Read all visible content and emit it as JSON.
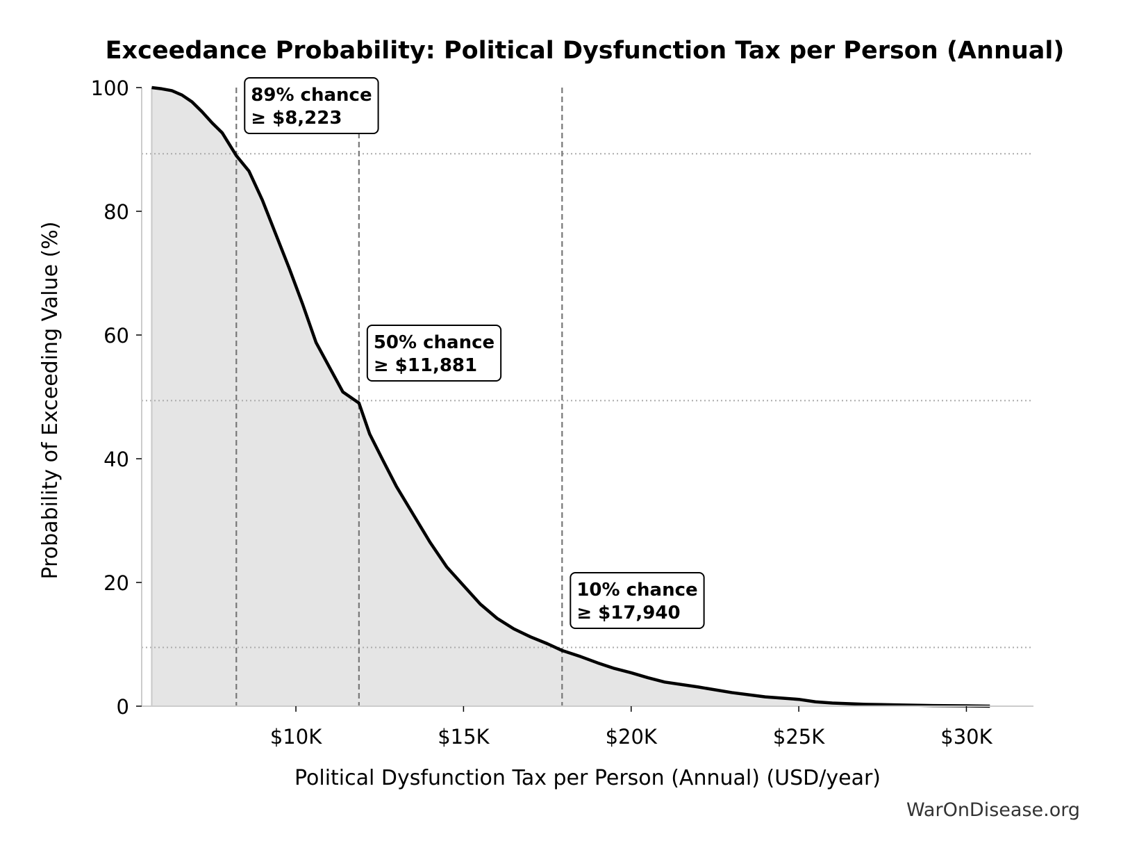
{
  "chart_data": {
    "type": "area",
    "title": "Exceedance Probability: Political Dysfunction Tax per Person (Annual)",
    "xlabel": "Political Dysfunction Tax per Person (Annual) (USD/year)",
    "ylabel": "Probability of Exceeding Value (%)",
    "xlim": [
      5400,
      32000
    ],
    "ylim": [
      0,
      100
    ],
    "x_ticks": [
      {
        "value": 10000,
        "label": "$10K"
      },
      {
        "value": 15000,
        "label": "$15K"
      },
      {
        "value": 20000,
        "label": "$20K"
      },
      {
        "value": 25000,
        "label": "$25K"
      },
      {
        "value": 30000,
        "label": "$30K"
      }
    ],
    "y_ticks": [
      {
        "value": 0,
        "label": "0"
      },
      {
        "value": 20,
        "label": "20"
      },
      {
        "value": 40,
        "label": "40"
      },
      {
        "value": 60,
        "label": "60"
      },
      {
        "value": 80,
        "label": "80"
      },
      {
        "value": 100,
        "label": "100"
      }
    ],
    "grid": false,
    "series": [
      {
        "x": [
          5700,
          6000,
          6300,
          6600,
          6900,
          7200,
          7500,
          7800,
          8223,
          8600,
          9000,
          9400,
          9800,
          10200,
          10600,
          11000,
          11400,
          11881,
          12200,
          12600,
          13000,
          13500,
          14000,
          14500,
          15000,
          15500,
          16000,
          16500,
          17000,
          17500,
          17940,
          18500,
          19000,
          19500,
          20000,
          20500,
          21000,
          22000,
          23000,
          24000,
          25000,
          25500,
          26000,
          27000,
          28000,
          29000,
          30000,
          30700
        ],
        "y": [
          100,
          99.8,
          99.5,
          98.8,
          97.7,
          96.1,
          94.3,
          92.7,
          89,
          86.5,
          81.8,
          76.3,
          70.8,
          65,
          58.8,
          54.8,
          50.8,
          49,
          44,
          39.7,
          35.5,
          31,
          26.5,
          22.5,
          19.5,
          16.5,
          14.2,
          12.5,
          11.2,
          10.1,
          9,
          8,
          7,
          6.1,
          5.4,
          4.6,
          3.9,
          3.1,
          2.2,
          1.5,
          1.1,
          0.7,
          0.5,
          0.3,
          0.2,
          0.1,
          0.05,
          0
        ]
      }
    ],
    "reference_lines": [
      {
        "x": 8223,
        "y": 89.3
      },
      {
        "x": 11881,
        "y": 49.4
      },
      {
        "x": 17940,
        "y": 9.5
      }
    ],
    "annotations": [
      {
        "line1": "89% chance",
        "line2": "≥ $8,223",
        "x": 8223,
        "y": 100
      },
      {
        "line1": "50% chance",
        "line2": "≥ $11,881",
        "x": 11881,
        "y": 60
      },
      {
        "line1": "10% chance",
        "line2": "≥ $17,940",
        "x": 17940,
        "y": 20
      }
    ],
    "colors": {
      "line": "#000000",
      "fill": "#e5e5e5",
      "vline": "#777777",
      "hline": "#aaaaaa"
    }
  },
  "watermark": "WarOnDisease.org"
}
